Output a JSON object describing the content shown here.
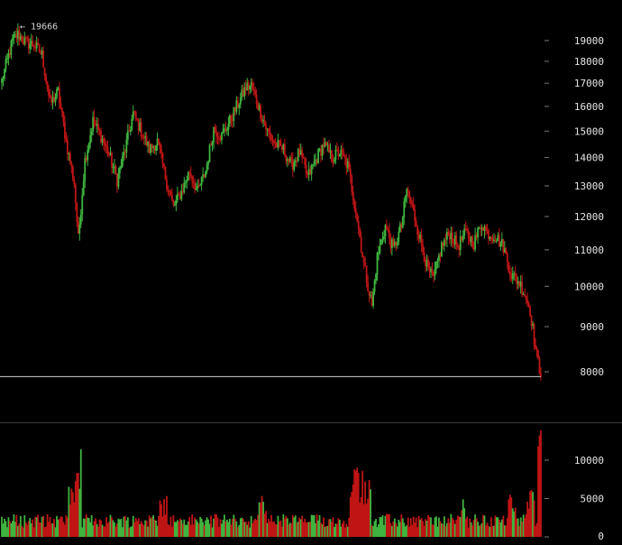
{
  "chart_data": [
    {
      "type": "candlestick",
      "title": "",
      "price_axis": {
        "scale": "log",
        "ticks": [
          19000,
          18000,
          17000,
          16000,
          15000,
          14000,
          13000,
          12000,
          11000,
          10000,
          9000,
          8000
        ],
        "tick_labels": [
          "19000",
          "18000",
          "17000",
          "16000",
          "15000",
          "14000",
          "13000",
          "12000",
          "11000",
          "10000",
          "9000",
          "8000"
        ],
        "ylim": [
          7400,
          20000
        ]
      },
      "annotations": {
        "high_marker": "← 19666",
        "high_value": 19666,
        "current_price_line": 7900
      },
      "colors": {
        "up": "#3fb53f",
        "down": "#c01515",
        "background": "#000000",
        "axis_text": "#e6e6e6",
        "price_line": "#d0d0d0"
      },
      "anchors_close": [
        [
          0,
          17100
        ],
        [
          8,
          19000
        ],
        [
          12,
          19300
        ],
        [
          18,
          18900
        ],
        [
          24,
          18800
        ],
        [
          30,
          18300
        ],
        [
          36,
          16100
        ],
        [
          42,
          16600
        ],
        [
          48,
          14600
        ],
        [
          54,
          13100
        ],
        [
          57,
          11300
        ],
        [
          62,
          13900
        ],
        [
          68,
          15400
        ],
        [
          74,
          14800
        ],
        [
          80,
          14100
        ],
        [
          86,
          13200
        ],
        [
          92,
          14300
        ],
        [
          98,
          15700
        ],
        [
          104,
          15000
        ],
        [
          110,
          14300
        ],
        [
          116,
          14600
        ],
        [
          122,
          13300
        ],
        [
          128,
          12300
        ],
        [
          134,
          12800
        ],
        [
          140,
          13500
        ],
        [
          146,
          12800
        ],
        [
          152,
          13500
        ],
        [
          158,
          15100
        ],
        [
          164,
          14800
        ],
        [
          170,
          15400
        ],
        [
          176,
          16100
        ],
        [
          182,
          16800
        ],
        [
          186,
          16900
        ],
        [
          192,
          15900
        ],
        [
          198,
          15000
        ],
        [
          204,
          14500
        ],
        [
          210,
          14300
        ],
        [
          216,
          13700
        ],
        [
          222,
          14200
        ],
        [
          228,
          13300
        ],
        [
          234,
          13900
        ],
        [
          240,
          14500
        ],
        [
          246,
          14000
        ],
        [
          252,
          14200
        ],
        [
          258,
          13700
        ],
        [
          264,
          12200
        ],
        [
          270,
          10600
        ],
        [
          276,
          9500
        ],
        [
          280,
          10800
        ],
        [
          286,
          11700
        ],
        [
          292,
          11000
        ],
        [
          298,
          11700
        ],
        [
          302,
          12900
        ],
        [
          306,
          12300
        ],
        [
          312,
          11300
        ],
        [
          318,
          10400
        ],
        [
          322,
          10200
        ],
        [
          328,
          11100
        ],
        [
          334,
          11500
        ],
        [
          340,
          11100
        ],
        [
          346,
          11500
        ],
        [
          352,
          11200
        ],
        [
          358,
          11800
        ],
        [
          362,
          11500
        ],
        [
          368,
          11400
        ],
        [
          374,
          11100
        ],
        [
          380,
          10300
        ],
        [
          386,
          10100
        ],
        [
          390,
          9800
        ],
        [
          394,
          9400
        ],
        [
          398,
          8500
        ],
        [
          402,
          7900
        ]
      ],
      "n_candles": 403,
      "volume_axis": {
        "ticks": [
          10000,
          5000,
          0
        ],
        "tick_labels": [
          "10000",
          "5000",
          "0"
        ],
        "ylim": [
          0,
          14000
        ]
      },
      "volume_bursts": [
        [
          50,
          55,
          7500
        ],
        [
          55,
          60,
          11500
        ],
        [
          118,
          124,
          5800
        ],
        [
          192,
          198,
          5900
        ],
        [
          260,
          270,
          9500
        ],
        [
          270,
          276,
          9000
        ],
        [
          342,
          346,
          5700
        ],
        [
          378,
          384,
          6100
        ],
        [
          392,
          398,
          6600
        ],
        [
          400,
          403,
          13900
        ]
      ]
    }
  ]
}
